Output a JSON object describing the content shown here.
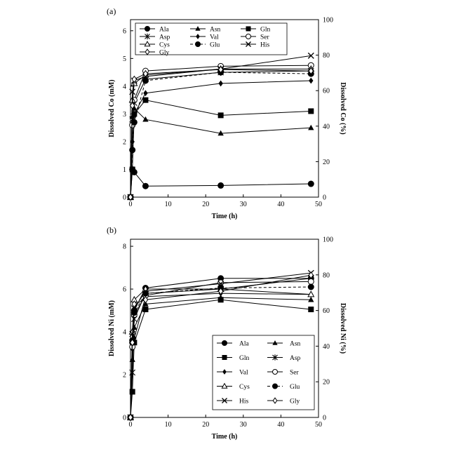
{
  "chart_data": [
    {
      "type": "line",
      "panel_label": "(a)",
      "xlabel": "Time (h)",
      "ylabel": "Dissolved Co (mM)",
      "y2label": "Dissolved Co (%)",
      "xlim": [
        0,
        50
      ],
      "ylim": [
        0,
        6.4
      ],
      "y2lim": [
        0,
        100
      ],
      "xticks": [
        0,
        10,
        20,
        30,
        40,
        50
      ],
      "yticks": [
        0,
        1,
        2,
        3,
        4,
        5,
        6
      ],
      "y2ticks": [
        0,
        20,
        40,
        60,
        80,
        100
      ],
      "grid": false,
      "legend_position": "top-left",
      "legend_columns": 3,
      "x": [
        0,
        0.5,
        1,
        4,
        24,
        48
      ],
      "series": [
        {
          "name": "Ala",
          "marker": "circle-filled",
          "dashed": false,
          "values": [
            0,
            1.0,
            0.9,
            0.4,
            0.42,
            0.48
          ]
        },
        {
          "name": "Asn",
          "marker": "triangle-filled",
          "dashed": false,
          "values": [
            0,
            2.9,
            3.2,
            2.8,
            2.3,
            2.5
          ]
        },
        {
          "name": "Gln",
          "marker": "square-filled",
          "dashed": false,
          "values": [
            0,
            1.0,
            3.0,
            3.5,
            2.95,
            3.1
          ]
        },
        {
          "name": "Asp",
          "marker": "asterisk",
          "dashed": false,
          "values": [
            0,
            2.8,
            3.4,
            4.25,
            4.5,
            4.55
          ]
        },
        {
          "name": "Val",
          "marker": "diamond-filled",
          "dashed": false,
          "values": [
            0,
            2.0,
            3.0,
            3.75,
            4.1,
            4.2
          ]
        },
        {
          "name": "Ser",
          "marker": "circle-open",
          "dashed": false,
          "values": [
            0,
            2.6,
            3.5,
            4.55,
            4.72,
            4.75
          ]
        },
        {
          "name": "Cys",
          "marker": "triangle-open",
          "dashed": false,
          "values": [
            0,
            3.5,
            4.1,
            4.4,
            4.62,
            4.62
          ]
        },
        {
          "name": "Glu",
          "marker": "circle-filled",
          "dashed": true,
          "values": [
            0,
            1.7,
            2.7,
            4.2,
            4.5,
            4.45
          ]
        },
        {
          "name": "His",
          "marker": "x",
          "dashed": false,
          "values": [
            0,
            3.8,
            4.2,
            4.35,
            4.62,
            5.1
          ]
        },
        {
          "name": "Gly",
          "marker": "diamond-open",
          "dashed": false,
          "values": [
            0,
            3.3,
            4.25,
            4.45,
            4.6,
            4.55
          ]
        }
      ]
    },
    {
      "type": "line",
      "panel_label": "(b)",
      "xlabel": "Time (h)",
      "ylabel": "Dissolved Ni (mM)",
      "y2label": "Dissolved Ni (%)",
      "xlim": [
        0,
        50
      ],
      "ylim": [
        0,
        8.33
      ],
      "y2lim": [
        0,
        100
      ],
      "xticks": [
        0,
        10,
        20,
        30,
        40,
        50
      ],
      "yticks": [
        0,
        2,
        4,
        6,
        8
      ],
      "y2ticks": [
        0,
        20,
        40,
        60,
        80,
        100
      ],
      "grid": false,
      "legend_position": "bottom-right",
      "legend_columns": 2,
      "x": [
        0,
        0.5,
        1,
        4,
        24,
        48
      ],
      "series": [
        {
          "name": "Ala",
          "marker": "circle-filled",
          "dashed": false,
          "values": [
            0,
            3.6,
            5.0,
            6.05,
            6.5,
            6.5
          ]
        },
        {
          "name": "Asn",
          "marker": "triangle-filled",
          "dashed": false,
          "values": [
            0,
            2.7,
            4.2,
            5.3,
            5.6,
            5.5
          ]
        },
        {
          "name": "Gln",
          "marker": "square-filled",
          "dashed": false,
          "values": [
            0,
            1.2,
            3.5,
            5.05,
            5.5,
            5.05
          ]
        },
        {
          "name": "Asp",
          "marker": "asterisk",
          "dashed": false,
          "values": [
            0,
            2.1,
            4.6,
            5.8,
            6.0,
            6.5
          ]
        },
        {
          "name": "Val",
          "marker": "diamond-filled",
          "dashed": false,
          "values": [
            0,
            3.2,
            3.7,
            5.65,
            5.8,
            5.75
          ]
        },
        {
          "name": "Ser",
          "marker": "circle-open",
          "dashed": false,
          "values": [
            0,
            3.3,
            4.8,
            5.7,
            6.3,
            6.35
          ]
        },
        {
          "name": "Cys",
          "marker": "triangle-open",
          "dashed": false,
          "values": [
            0,
            4.0,
            5.5,
            6.0,
            6.0,
            5.75
          ]
        },
        {
          "name": "Glu",
          "marker": "circle-filled",
          "dashed": true,
          "values": [
            0,
            3.5,
            4.9,
            5.8,
            6.05,
            6.1
          ]
        },
        {
          "name": "His",
          "marker": "x",
          "dashed": false,
          "values": [
            0,
            3.9,
            5.1,
            5.9,
            6.25,
            6.75
          ]
        },
        {
          "name": "Gly",
          "marker": "diamond-open",
          "dashed": false,
          "values": [
            0,
            3.5,
            5.3,
            5.5,
            5.9,
            6.65
          ]
        }
      ]
    }
  ]
}
